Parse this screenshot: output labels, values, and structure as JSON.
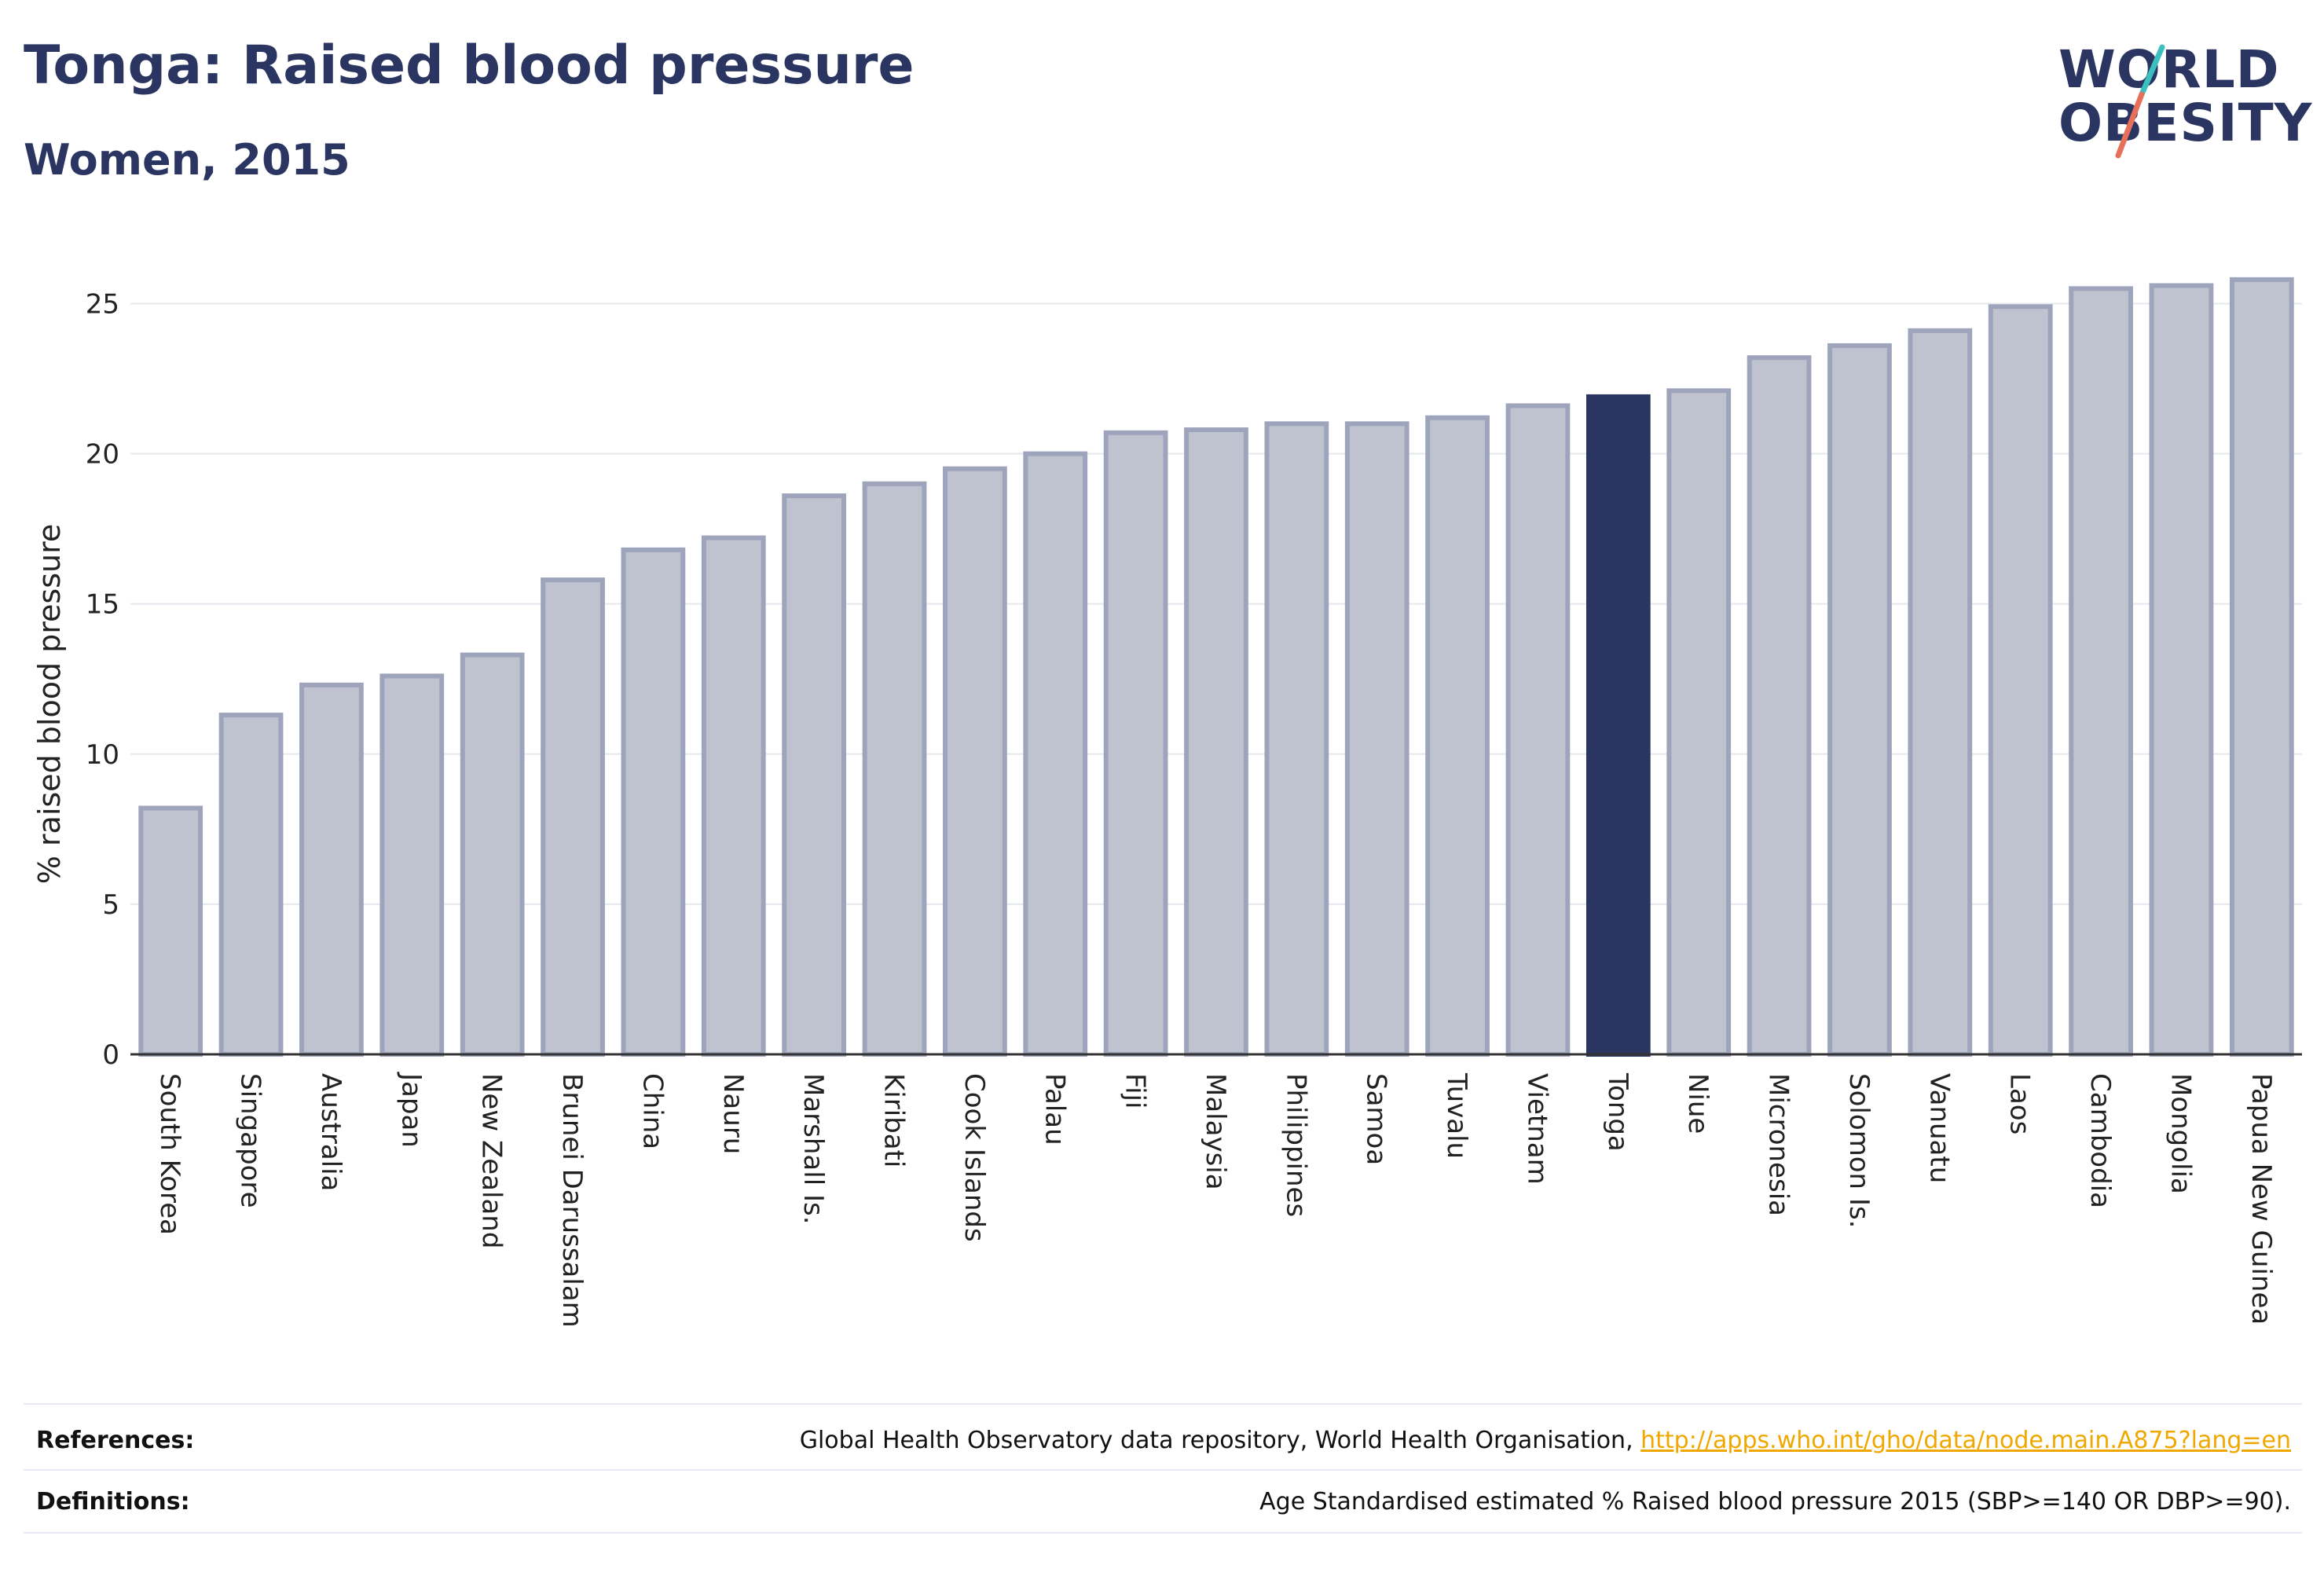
{
  "header": {
    "title": "Tonga: Raised blood pressure",
    "subtitle": "Women, 2015"
  },
  "logo": {
    "line1": "WORLD",
    "line2": "OBESITY",
    "accent_colors": [
      "#3bbfbf",
      "#e8705a"
    ]
  },
  "footer": {
    "references_label": "References:",
    "references_text": "Global Health Observatory data repository, World Health Organisation, ",
    "references_link": "http://apps.who.int/gho/data/node.main.A875?lang=en",
    "definitions_label": "Definitions:",
    "definitions_text": "Age Standardised estimated % Raised blood pressure 2015 (SBP>=140 OR DBP>=90)."
  },
  "colors": {
    "highlight": "#2b3561",
    "bar_fill": "#bfc3d0",
    "bar_stroke": "#9ea4bb"
  },
  "chart_data": {
    "type": "bar",
    "title": "Tonga: Raised blood pressure",
    "subtitle": "Women, 2015",
    "xlabel": "",
    "ylabel": "% raised blood pressure",
    "ylim": [
      0,
      27
    ],
    "yticks": [
      0,
      5,
      10,
      15,
      20,
      25
    ],
    "grid": true,
    "highlight": "Tonga",
    "categories": [
      "South Korea",
      "Singapore",
      "Australia",
      "Japan",
      "New Zealand",
      "Brunei Darussalam",
      "China",
      "Nauru",
      "Marshall Is.",
      "Kiribati",
      "Cook Islands",
      "Palau",
      "Fiji",
      "Malaysia",
      "Philippines",
      "Samoa",
      "Tuvalu",
      "Vietnam",
      "Tonga",
      "Niue",
      "Micronesia",
      "Solomon Is.",
      "Vanuatu",
      "Laos",
      "Cambodia",
      "Mongolia",
      "Papua New Guinea"
    ],
    "values": [
      8.2,
      11.3,
      12.3,
      12.6,
      13.3,
      15.8,
      16.8,
      17.2,
      18.6,
      19.0,
      19.5,
      20.0,
      20.7,
      20.8,
      21.0,
      21.0,
      21.2,
      21.6,
      21.9,
      22.1,
      23.2,
      23.6,
      24.1,
      24.9,
      25.5,
      25.6,
      25.8
    ]
  }
}
